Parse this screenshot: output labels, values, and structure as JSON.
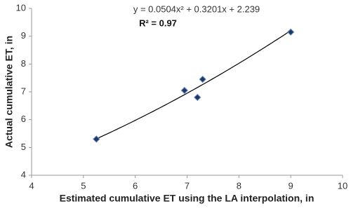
{
  "chart_data": {
    "type": "scatter",
    "x_label": "Estimated cumulative ET using the LA interpolation, in",
    "y_label": "Actual cumulative ET, in",
    "x": [
      5.25,
      6.95,
      7.2,
      7.3,
      9.0
    ],
    "values": [
      5.3,
      7.05,
      6.8,
      7.45,
      9.15
    ],
    "color": "#1f3864",
    "xlim": [
      4,
      10
    ],
    "xticks": [
      4,
      5,
      6,
      7,
      8,
      9,
      10
    ],
    "ylim": [
      4,
      10
    ],
    "yticks": [
      4,
      5,
      6,
      7,
      8,
      9,
      10
    ],
    "trendline": {
      "equation": "y = 0.0504x² + 0.3201x + 2.239",
      "r_squared": "R² = 0.97",
      "coefficients": [
        0.0504,
        0.3201,
        2.239
      ]
    }
  }
}
